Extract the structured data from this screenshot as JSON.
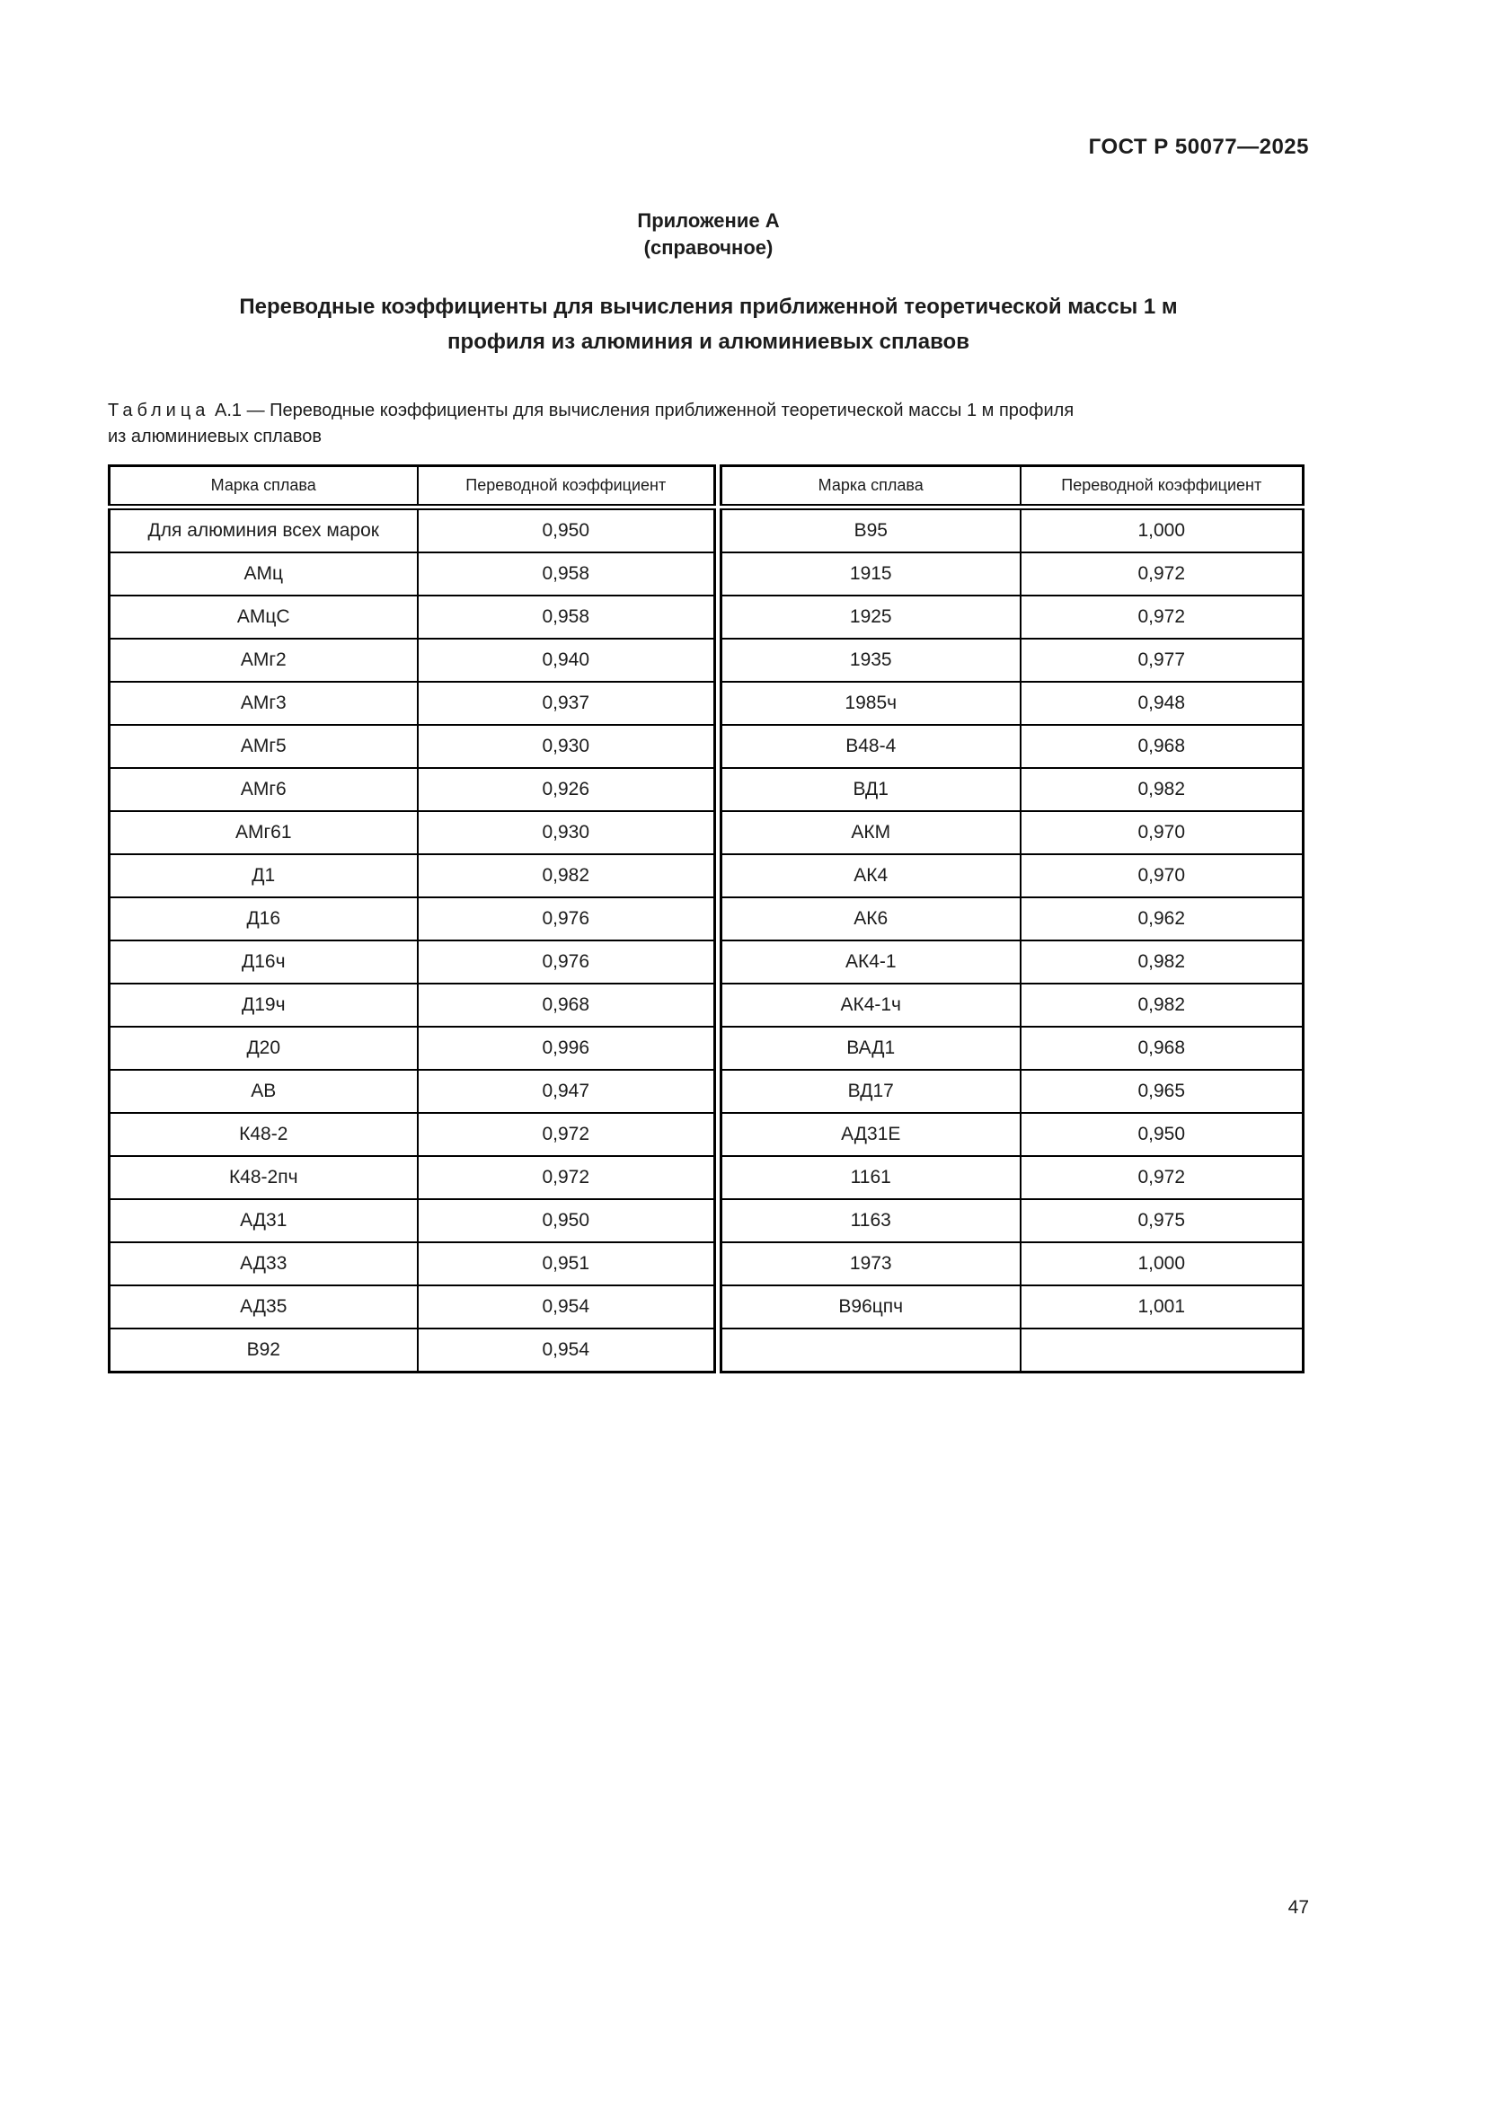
{
  "header": {
    "doc_code": "ГОСТ Р 50077—2025"
  },
  "annex": {
    "title": "Приложение А",
    "subtitle": "(справочное)"
  },
  "main_title": {
    "line1": "Переводные коэффициенты для вычисления приближенной теоретической массы 1 м",
    "line2": "профиля из алюминия и алюминиевых сплавов"
  },
  "table": {
    "caption_label": "Таблица",
    "caption_number": "А.1",
    "caption_text_line1": "— Переводные коэффициенты для вычисления приближенной теоретической массы 1 м профиля",
    "caption_text_line2": "из алюминиевых сплавов",
    "headers": [
      "Марка сплава",
      "Переводной коэффициент",
      "Марка сплава",
      "Переводной коэффициент"
    ],
    "rows": [
      [
        "Для алюминия всех марок",
        "0,950",
        "В95",
        "1,000"
      ],
      [
        "АМц",
        "0,958",
        "1915",
        "0,972"
      ],
      [
        "АМцС",
        "0,958",
        "1925",
        "0,972"
      ],
      [
        "АМг2",
        "0,940",
        "1935",
        "0,977"
      ],
      [
        "АМг3",
        "0,937",
        "1985ч",
        "0,948"
      ],
      [
        "АМг5",
        "0,930",
        "В48-4",
        "0,968"
      ],
      [
        "АМг6",
        "0,926",
        "ВД1",
        "0,982"
      ],
      [
        "АМг61",
        "0,930",
        "АКМ",
        "0,970"
      ],
      [
        "Д1",
        "0,982",
        "АК4",
        "0,970"
      ],
      [
        "Д16",
        "0,976",
        "АК6",
        "0,962"
      ],
      [
        "Д16ч",
        "0,976",
        "АК4-1",
        "0,982"
      ],
      [
        "Д19ч",
        "0,968",
        "АК4-1ч",
        "0,982"
      ],
      [
        "Д20",
        "0,996",
        "ВАД1",
        "0,968"
      ],
      [
        "АВ",
        "0,947",
        "ВД17",
        "0,965"
      ],
      [
        "К48-2",
        "0,972",
        "АД31Е",
        "0,950"
      ],
      [
        "К48-2пч",
        "0,972",
        "1161",
        "0,972"
      ],
      [
        "АД31",
        "0,950",
        "1163",
        "0,975"
      ],
      [
        "АД33",
        "0,951",
        "1973",
        "1,000"
      ],
      [
        "АД35",
        "0,954",
        "В96цпч",
        "1,001"
      ],
      [
        "В92",
        "0,954",
        "",
        ""
      ]
    ]
  },
  "footer": {
    "page_number": "47"
  },
  "colors": {
    "text": "#1c1c1c",
    "border": "#000000",
    "background": "#ffffff"
  }
}
